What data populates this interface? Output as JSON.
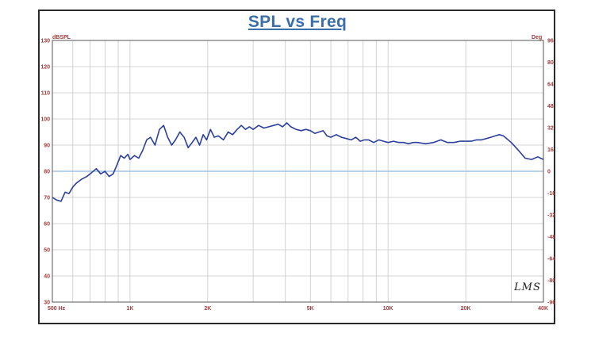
{
  "logo": "LMS",
  "chart_data": {
    "type": "line",
    "title": "SPL vs Freq",
    "xlabel": "",
    "ylabel": "dBSPL",
    "y2label": "Deg",
    "xscale": "log",
    "xlim": [
      500,
      40000
    ],
    "ylim": [
      30,
      130
    ],
    "y2lim": [
      -96,
      96
    ],
    "grid": true,
    "x_ticks": [
      {
        "value": 500,
        "label": "500 Hz"
      },
      {
        "value": 1000,
        "label": "1K"
      },
      {
        "value": 2000,
        "label": "2K"
      },
      {
        "value": 5000,
        "label": "5K"
      },
      {
        "value": 10000,
        "label": "10K"
      },
      {
        "value": 20000,
        "label": "20K"
      },
      {
        "value": 40000,
        "label": "40K"
      }
    ],
    "y_ticks": [
      30,
      40,
      50,
      60,
      70,
      80,
      90,
      100,
      110,
      120,
      130
    ],
    "y2_ticks": [
      96,
      80,
      64,
      48,
      32,
      16,
      0,
      -16,
      -32,
      -48,
      -64,
      -80,
      -96
    ],
    "reference_line": {
      "y": 80,
      "color": "#9fc3e3"
    },
    "colors": {
      "title": "#3b6fa8",
      "tick_labels": "#9e3a3a",
      "curve": "#2c3f9c",
      "grid": "#c8c8c8"
    },
    "series": [
      {
        "x": [
          500,
          520,
          540,
          560,
          580,
          600,
          620,
          650,
          680,
          710,
          740,
          770,
          800,
          830,
          860,
          890,
          920,
          950,
          980,
          1000,
          1040,
          1080,
          1120,
          1160,
          1200,
          1250,
          1300,
          1350,
          1400,
          1450,
          1500,
          1560,
          1620,
          1680,
          1740,
          1800,
          1860,
          1920,
          1980,
          2050,
          2120,
          2200,
          2300,
          2400,
          2500,
          2600,
          2700,
          2800,
          2900,
          3000,
          3150,
          3300,
          3450,
          3600,
          3750,
          3900,
          4050,
          4200,
          4400,
          4600,
          4800,
          5000,
          5200,
          5400,
          5600,
          5800,
          6000,
          6300,
          6600,
          6900,
          7200,
          7500,
          7800,
          8100,
          8400,
          8800,
          9200,
          9600,
          10000,
          10500,
          11000,
          11500,
          12000,
          12500,
          13000,
          14000,
          15000,
          16000,
          17000,
          18000,
          19000,
          20000,
          21000,
          22000,
          23000,
          24000,
          25000,
          26000,
          27000,
          28000,
          30000,
          32000,
          34000,
          36000,
          38000,
          40000
        ],
        "y": [
          70,
          69,
          68.5,
          72,
          71.5,
          74,
          75.5,
          77,
          78,
          79.5,
          81,
          79,
          80,
          78,
          79,
          82.5,
          86,
          85,
          86.5,
          84.5,
          86,
          85,
          88,
          92,
          93,
          90,
          96,
          97.5,
          93,
          90,
          92,
          95,
          93,
          89,
          91,
          93,
          90,
          94,
          92,
          96,
          93,
          93.5,
          92,
          95,
          94,
          96,
          97.5,
          96,
          97,
          96,
          97.5,
          96.5,
          97,
          97.5,
          98,
          97,
          98.5,
          97,
          96,
          95.5,
          96,
          95.5,
          94.5,
          95,
          95.5,
          93.5,
          93,
          94,
          93,
          92.5,
          92,
          93,
          91.5,
          92,
          92,
          91,
          92,
          91.5,
          91,
          91.5,
          91,
          91,
          90.5,
          91,
          91,
          90.5,
          91,
          92,
          91,
          91,
          91.5,
          91.5,
          91.5,
          92,
          92,
          92.5,
          93,
          93.5,
          94,
          93.5,
          91,
          88,
          85,
          84.5,
          85.5,
          84.5
        ]
      }
    ]
  }
}
